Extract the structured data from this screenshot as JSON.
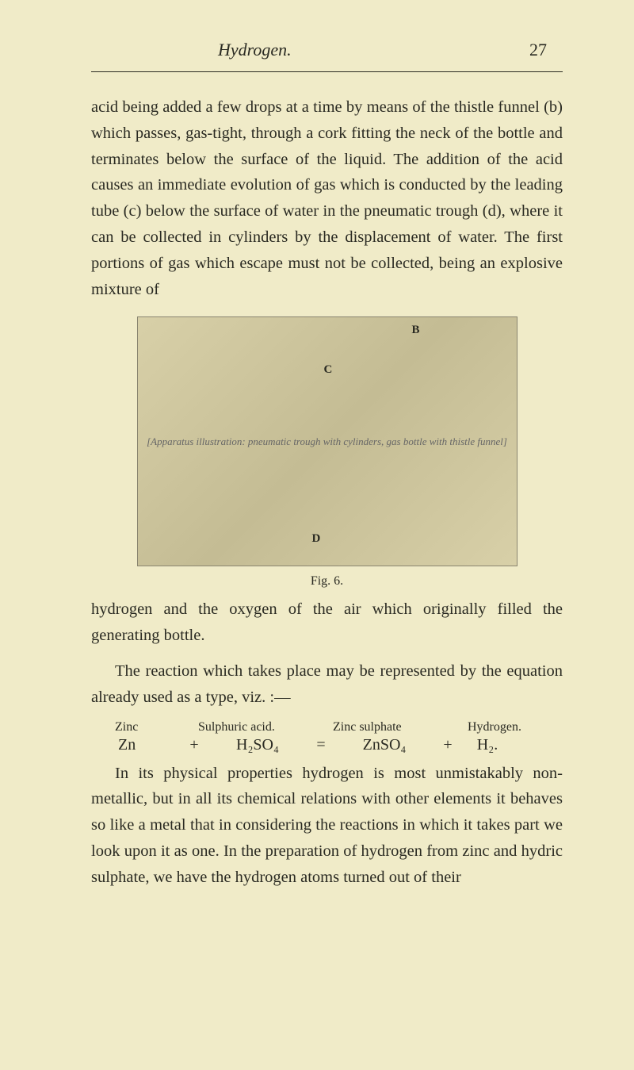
{
  "header": {
    "title": "Hydrogen.",
    "pageNumber": "27"
  },
  "paragraphs": {
    "p1": "acid being added a few drops at a time by means of the thistle funnel (b) which passes, gas-tight, through a cork fitting the neck of the bottle and terminates below the surface of the liquid. The addition of the acid causes an immediate evolution of gas which is conducted by the leading tube (c) below the surface of water in the pneumatic trough (d), where it can be collected in cylinders by the displacement of water. The first portions of gas which escape must not be collected, being an explosive mixture of",
    "p2": "hydrogen and the oxygen of the air which originally filled the generating bottle.",
    "p3": "The reaction which takes place may be represented by the equation already used as a type, viz. :—",
    "p4": "In its physical properties hydrogen is most unmistakably non-metallic, but in all its chemical relations with other elements it behaves so like a metal that in considering the reactions in which it takes part we look upon it as one. In the preparation of hydrogen from zinc and hydric sulphate, we have the hydrogen atoms turned out of their"
  },
  "figure": {
    "caption": "Fig. 6.",
    "labelB": "B",
    "labelC": "C",
    "labelD": "D",
    "description": "[Apparatus illustration: pneumatic trough with cylinders, gas bottle with thistle funnel]"
  },
  "equation": {
    "labels": {
      "zinc": "Zinc",
      "acid": "Sulphuric acid.",
      "sulphate": "Zinc sulphate",
      "hydrogen": "Hydrogen."
    },
    "values": {
      "zn": "Zn",
      "plus1": "+",
      "h2so4": "H₂SO₄",
      "eq": "=",
      "znso4": "ZnSO₄",
      "plus2": "+",
      "h2": "H₂."
    }
  }
}
